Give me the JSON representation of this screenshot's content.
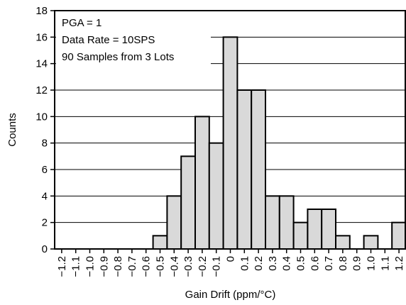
{
  "chart_data": {
    "type": "bar",
    "categories": [
      "-1.2",
      "-1.1",
      "-1.0",
      "-0.9",
      "-0.8",
      "-0.7",
      "-0.6",
      "-0.5",
      "-0.4",
      "-0.3",
      "-0.2",
      "-0.1",
      "0",
      "0.1",
      "0.2",
      "0.3",
      "0.4",
      "0.5",
      "0.6",
      "0.7",
      "0.8",
      "0.9",
      "1.0",
      "1.1",
      "1.2"
    ],
    "category_labels": [
      "−1.2",
      "−1.1",
      "−1.0",
      "−0.9",
      "−0.8",
      "−0.7",
      "−0.6",
      "−0.5",
      "−0.4",
      "−0.3",
      "−0.2",
      "−0.1",
      "0",
      "0.1",
      "0.2",
      "0.3",
      "0.4",
      "0.5",
      "0.6",
      "0.7",
      "0.8",
      "0.9",
      "1.0",
      "1.1",
      "1.2"
    ],
    "values": [
      0,
      0,
      0,
      0,
      0,
      0,
      0,
      1,
      4,
      7,
      10,
      8,
      16,
      12,
      12,
      4,
      4,
      2,
      3,
      3,
      1,
      0,
      1,
      0,
      2
    ],
    "title": "",
    "xlabel": "Gain Drift (ppm/°C)",
    "ylabel": "Counts",
    "ylim": [
      0,
      18
    ],
    "yticks": [
      0,
      2,
      4,
      6,
      8,
      10,
      12,
      14,
      16,
      18
    ],
    "grid": "horizontal",
    "bar_color": "#d9d9d9",
    "bar_edge_color": "#000000",
    "annotations": [
      "PGA = 1",
      "Data Rate = 10SPS",
      "90 Samples from 3 Lots"
    ]
  }
}
